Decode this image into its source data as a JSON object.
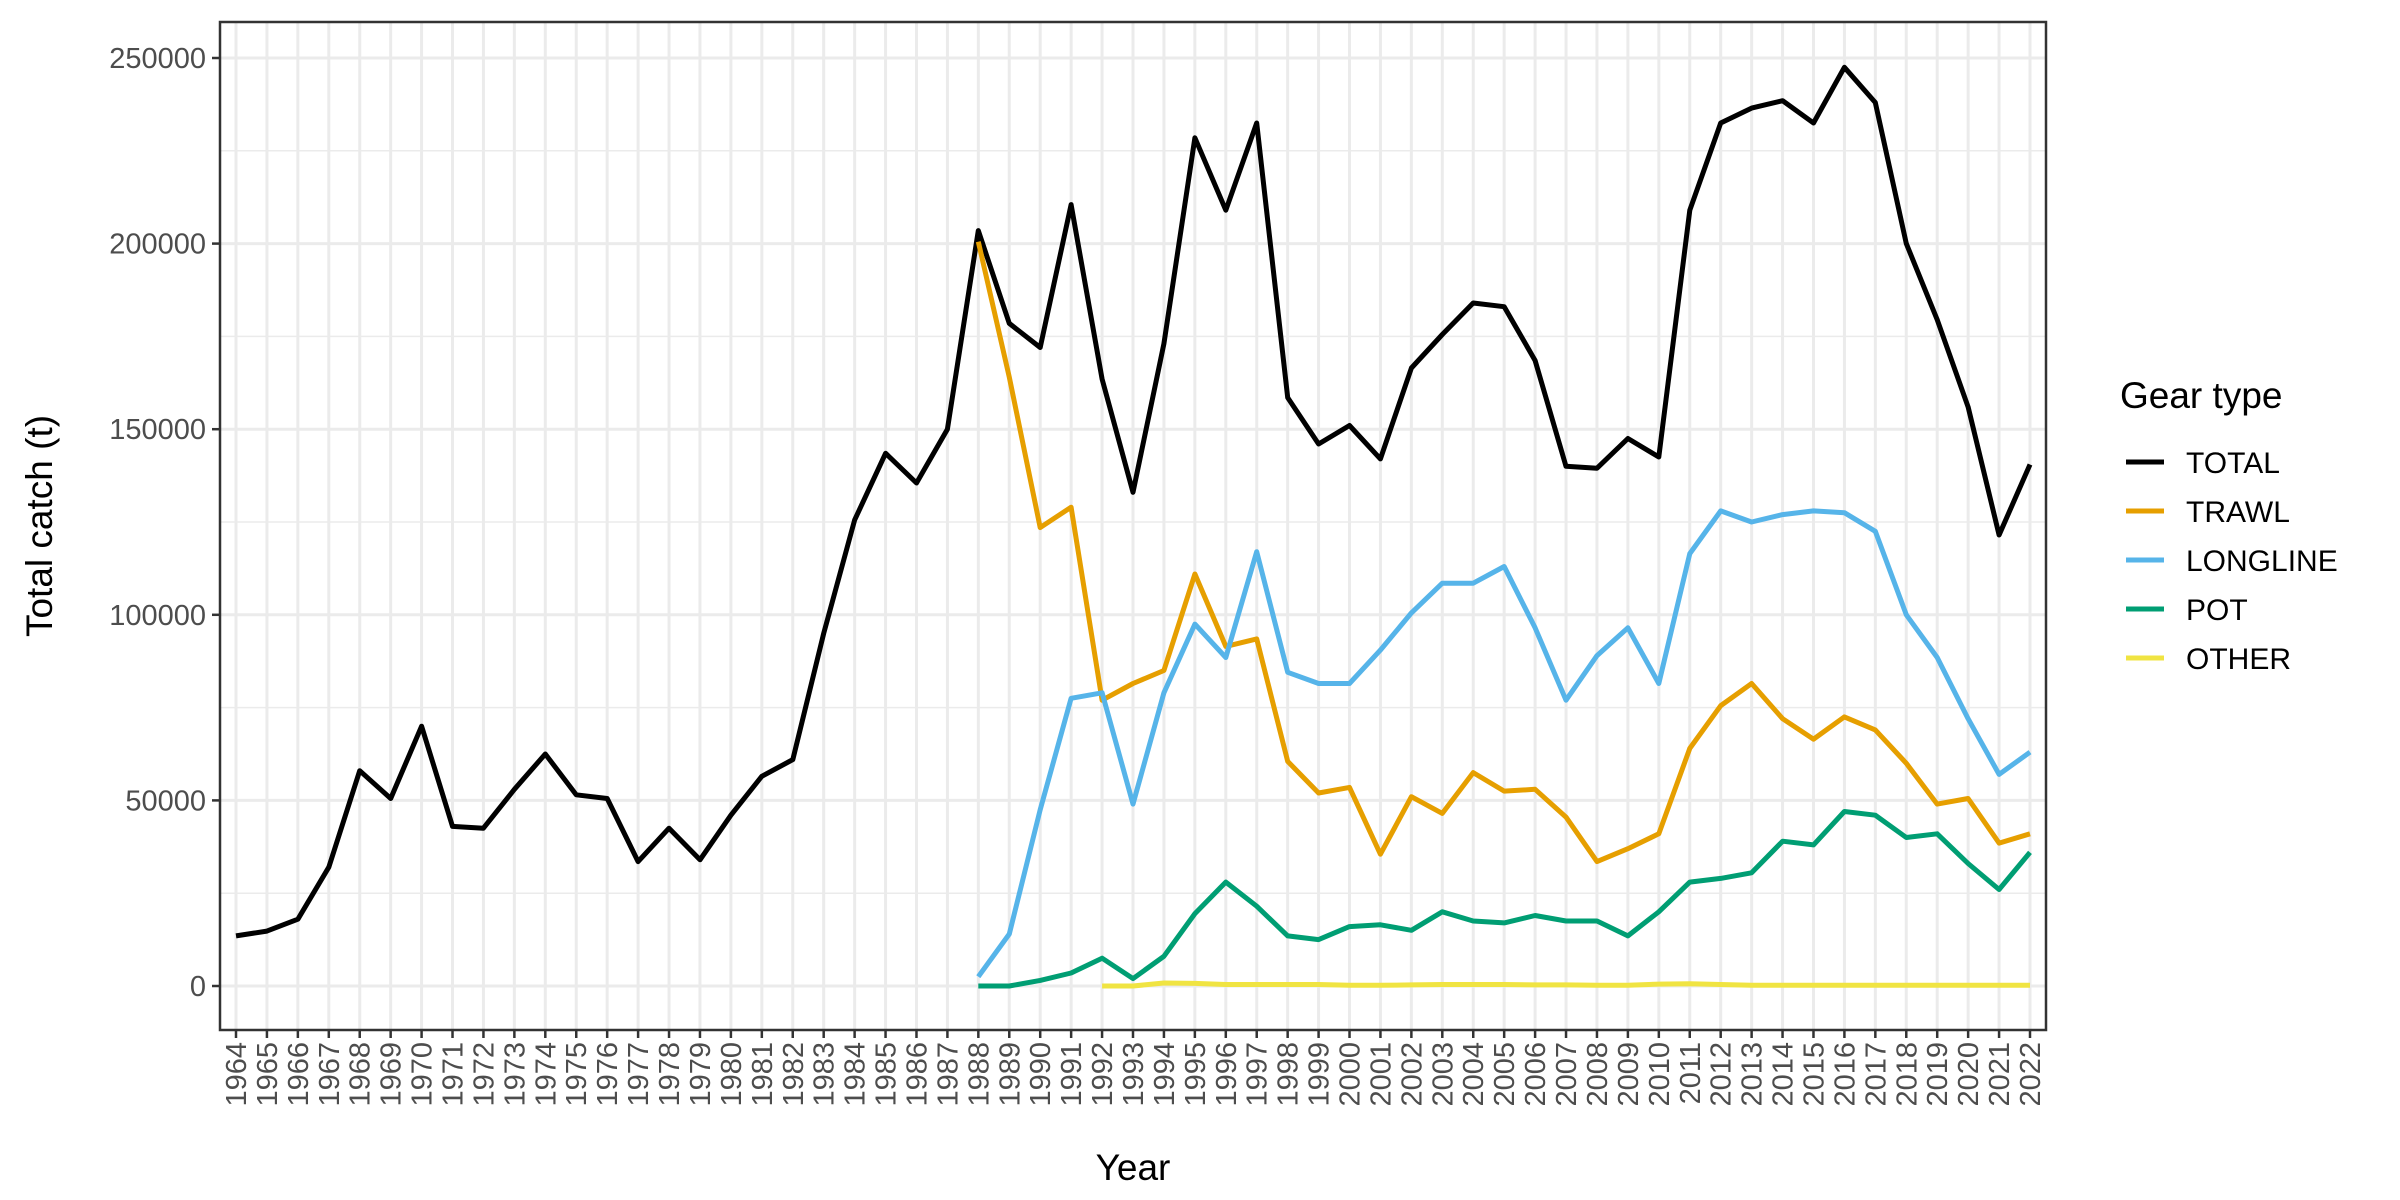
{
  "chart_data": {
    "type": "line",
    "title": "",
    "xlabel": "Year",
    "ylabel": "Total catch (t)",
    "xlim": [
      1964,
      2022
    ],
    "ylim": [
      0,
      250000
    ],
    "y_ticks": [
      "0",
      "50000",
      "100000",
      "150000",
      "200000",
      "250000"
    ],
    "y_tick_values": [
      0,
      50000,
      100000,
      150000,
      200000,
      250000
    ],
    "grid": true,
    "legend": {
      "title": "Gear type",
      "position": "right"
    },
    "series": [
      {
        "name": "TOTAL",
        "color": "#000000",
        "x": [
          1964,
          1965,
          1966,
          1967,
          1968,
          1969,
          1970,
          1971,
          1972,
          1973,
          1974,
          1975,
          1976,
          1977,
          1978,
          1979,
          1980,
          1981,
          1982,
          1983,
          1984,
          1985,
          1986,
          1987,
          1988,
          1989,
          1990,
          1991,
          1992,
          1993,
          1994,
          1995,
          1996,
          1997,
          1998,
          1999,
          2000,
          2001,
          2002,
          2003,
          2004,
          2005,
          2006,
          2007,
          2008,
          2009,
          2010,
          2011,
          2012,
          2013,
          2014,
          2015,
          2016,
          2017,
          2018,
          2019,
          2020,
          2021,
          2022
        ],
        "values": [
          13500,
          14800,
          18000,
          32000,
          58000,
          50500,
          70000,
          43000,
          42500,
          53000,
          62500,
          51500,
          50500,
          33500,
          42500,
          34000,
          46000,
          56500,
          61000,
          95000,
          125500,
          143500,
          135500,
          150000,
          203500,
          178500,
          172000,
          210500,
          163500,
          133000,
          173000,
          228500,
          209000,
          232500,
          158500,
          146000,
          151000,
          142000,
          166500,
          175500,
          184000,
          183000,
          168500,
          140000,
          139500,
          147500,
          142500,
          209000,
          232500,
          236500,
          238500,
          232500,
          247500,
          238000,
          200000,
          179500,
          156000,
          121500,
          140500
        ]
      },
      {
        "name": "TRAWL",
        "color": "#E69F00",
        "x": [
          1988,
          1989,
          1990,
          1991,
          1992,
          1993,
          1994,
          1995,
          1996,
          1997,
          1998,
          1999,
          2000,
          2001,
          2002,
          2003,
          2004,
          2005,
          2006,
          2007,
          2008,
          2009,
          2010,
          2011,
          2012,
          2013,
          2014,
          2015,
          2016,
          2017,
          2018,
          2019,
          2020,
          2021,
          2022
        ],
        "values": [
          200500,
          164000,
          123500,
          129000,
          77000,
          81500,
          85000,
          111000,
          91500,
          93500,
          60500,
          52000,
          53500,
          35500,
          51000,
          46500,
          57500,
          52500,
          53000,
          45500,
          33500,
          37000,
          41000,
          64000,
          75500,
          81500,
          72000,
          66500,
          72500,
          69000,
          60000,
          49000,
          50500,
          38500,
          41000
        ]
      },
      {
        "name": "LONGLINE",
        "color": "#56B4E9",
        "x": [
          1988,
          1989,
          1990,
          1991,
          1992,
          1993,
          1994,
          1995,
          1996,
          1997,
          1998,
          1999,
          2000,
          2001,
          2002,
          2003,
          2004,
          2005,
          2006,
          2007,
          2008,
          2009,
          2010,
          2011,
          2012,
          2013,
          2014,
          2015,
          2016,
          2017,
          2018,
          2019,
          2020,
          2021,
          2022
        ],
        "values": [
          2500,
          14000,
          47500,
          77500,
          79000,
          49000,
          79000,
          97500,
          88500,
          117000,
          84500,
          81500,
          81500,
          90500,
          100500,
          108500,
          108500,
          113000,
          96500,
          77000,
          89000,
          96500,
          81500,
          116500,
          128000,
          125000,
          127000,
          128000,
          127500,
          122500,
          100000,
          88500,
          72000,
          57000,
          63000
        ]
      },
      {
        "name": "POT",
        "color": "#009E73",
        "x": [
          1988,
          1989,
          1990,
          1991,
          1992,
          1993,
          1994,
          1995,
          1996,
          1997,
          1998,
          1999,
          2000,
          2001,
          2002,
          2003,
          2004,
          2005,
          2006,
          2007,
          2008,
          2009,
          2010,
          2011,
          2012,
          2013,
          2014,
          2015,
          2016,
          2017,
          2018,
          2019,
          2020,
          2021,
          2022
        ],
        "values": [
          0,
          0,
          1500,
          3500,
          7500,
          2000,
          8000,
          19500,
          28000,
          21500,
          13500,
          12500,
          16000,
          16500,
          15000,
          20000,
          17500,
          17000,
          19000,
          17500,
          17500,
          13500,
          20000,
          28000,
          29000,
          30500,
          39000,
          38000,
          47000,
          46000,
          40000,
          41000,
          33000,
          26000,
          36000
        ]
      },
      {
        "name": "OTHER",
        "color": "#F0E442",
        "x": [
          1992,
          1993,
          1994,
          1995,
          1996,
          1997,
          1998,
          1999,
          2000,
          2001,
          2002,
          2003,
          2004,
          2005,
          2006,
          2007,
          2008,
          2009,
          2010,
          2011,
          2012,
          2013,
          2014,
          2015,
          2016,
          2017,
          2018,
          2019,
          2020,
          2021,
          2022
        ],
        "values": [
          0,
          0,
          800,
          700,
          400,
          400,
          400,
          400,
          200,
          200,
          300,
          400,
          400,
          400,
          300,
          300,
          200,
          200,
          500,
          600,
          400,
          200,
          200,
          200,
          200,
          200,
          200,
          200,
          200,
          200,
          200
        ]
      }
    ]
  }
}
